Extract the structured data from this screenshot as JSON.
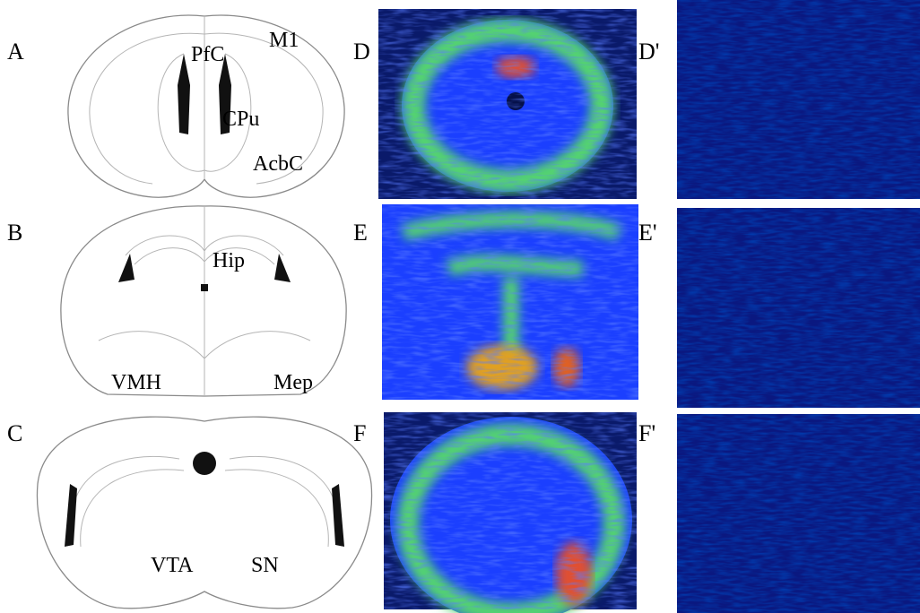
{
  "atlas": [
    {
      "label": "A",
      "regions": [
        "PfC",
        "M1",
        "CPu",
        "AcbC"
      ]
    },
    {
      "label": "B",
      "regions": [
        "Hip",
        "VMH",
        "Mep"
      ]
    },
    {
      "label": "C",
      "regions": [
        "VTA",
        "SN"
      ]
    }
  ],
  "images": [
    {
      "label": "D",
      "control_label": "D'"
    },
    {
      "label": "E",
      "control_label": "E'"
    },
    {
      "label": "F",
      "control_label": "F'"
    }
  ]
}
